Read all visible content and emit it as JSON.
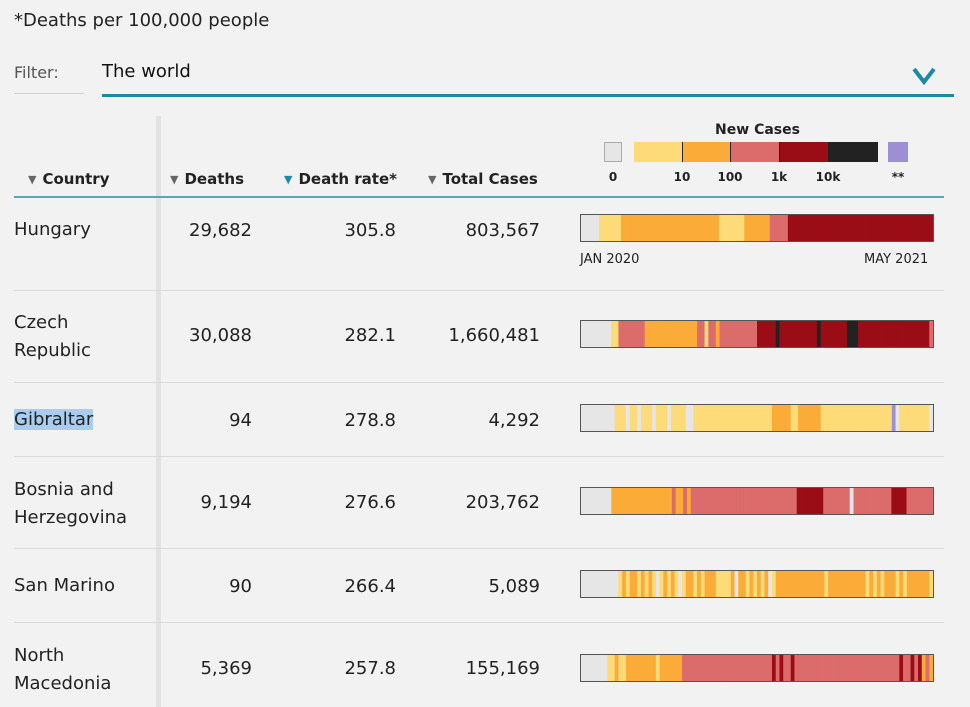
{
  "note": "*Deaths per 100,000 people",
  "filter": {
    "label": "Filter:",
    "value": "The world"
  },
  "columns": {
    "country": "Country",
    "deaths": "Deaths",
    "death_rate": "Death rate*",
    "total_cases": "Total Cases"
  },
  "legend": {
    "title": "New Cases",
    "labels": [
      "0",
      "10",
      "100",
      "1k",
      "10k",
      "**"
    ],
    "colors": {
      "zero": "#e6e6e6",
      "low": "#fddb78",
      "mid": "#fbab38",
      "high": "#dc6b6b",
      "very_high": "#9b0d16",
      "extreme": "#222222",
      "unknown": "#9d8fd3"
    }
  },
  "axis": {
    "start": "JAN 2020",
    "end": "MAY 2021"
  },
  "rows": [
    {
      "country": "Hungary",
      "deaths": "29,682",
      "death_rate": "305.8",
      "total_cases": "803,567",
      "strip": "0000011111122222222222222222222222222211111112222222333334444444444444444444444444444444444444444"
    },
    {
      "country": "Czech Republic",
      "deaths": "30,088",
      "death_rate": "282.1",
      "total_cases": "1,660,481",
      "strip": "0000000011333333322222222222222331332333333333344444544444444445444444455544444444444444444443"
    },
    {
      "country": "Gibraltar",
      "deaths": "94",
      "death_rate": "278.8",
      "total_cases": "4,292",
      "strip": "0000000001110110111011101111001111111111111111111112222211222222111111111111111111160111111110"
    },
    {
      "country": "Bosnia and Herzegovina",
      "deaths": "9,194",
      "death_rate": "276.6",
      "total_cases": "203,762",
      "strip": "000000002222222222222222322323333333333333333333333333333444444433333330333333333344443333333"
    },
    {
      "country": "San Marino",
      "deaths": "90",
      "death_rate": "266.4",
      "total_cases": "5,089",
      "strip": "0000000000121221212101212101221212221111202212121201222222222222212222222222121212221212222221"
    },
    {
      "country": "North Macedonia",
      "deaths": "5,369",
      "death_rate": "257.8",
      "total_cases": "155,169",
      "strip": "0000000112112222222212222223333333333333333333333334343343333333333333333333333333333433434232"
    }
  ]
}
